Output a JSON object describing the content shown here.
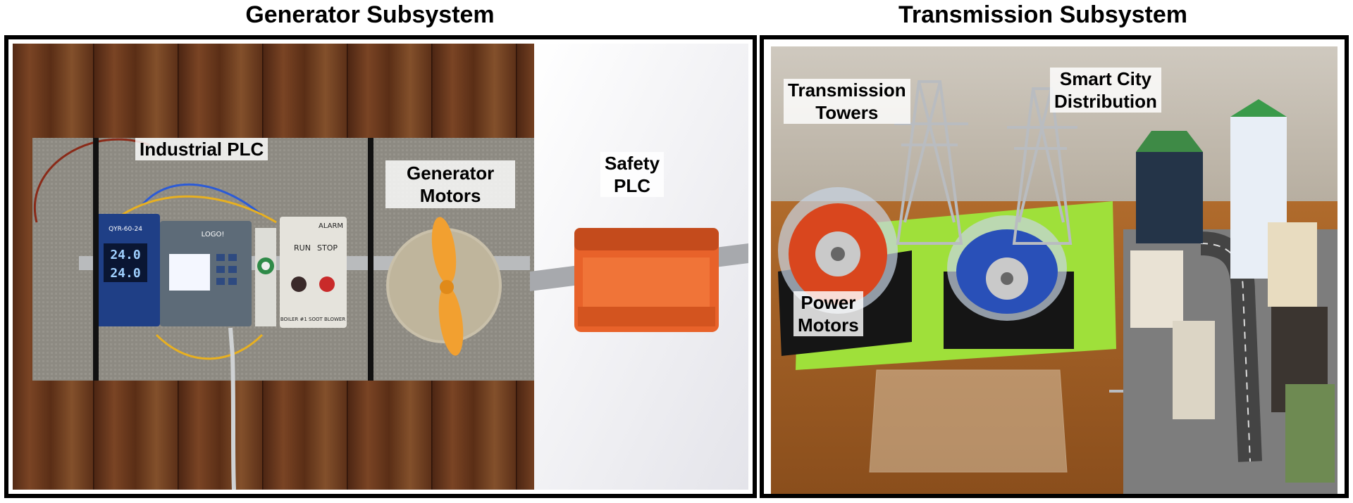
{
  "panels": {
    "generator": {
      "title": "Generator Subsystem",
      "labels": {
        "industrial_plc": "Industrial PLC",
        "generator_motors": [
          "Generator",
          "Motors"
        ],
        "safety_plc": [
          "Safety",
          "PLC"
        ]
      },
      "device_text": {
        "psu_model": "QYR-60-24",
        "psu_reading_1": "24.0",
        "psu_reading_2": "24.0",
        "plc_brand": "LOGO!",
        "run": "RUN",
        "stop": "STOP",
        "alarm": "ALARM",
        "boiler_label": "BOILER #1 SOOT BLOWER"
      }
    },
    "transmission": {
      "title": "Transmission Subsystem",
      "labels": {
        "transmission_towers": [
          "Transmission",
          "Towers"
        ],
        "smart_city": [
          "Smart City",
          "Distribution"
        ],
        "power_motors": [
          "Power",
          "Motors"
        ]
      }
    }
  },
  "colors": {
    "frame_border": "#000000",
    "wood_floor": "#6b3a1e",
    "fabric_board": "#8e8a80",
    "safety_plc_orange": "#e8622a",
    "green_mat": "#9fe03a",
    "table_wood": "#a8642a"
  }
}
